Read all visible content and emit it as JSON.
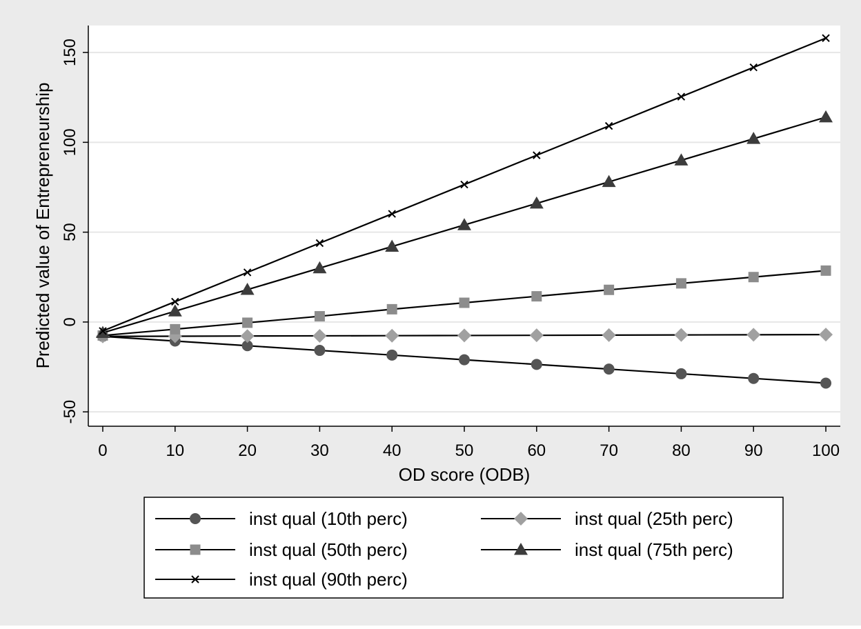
{
  "chart_data": {
    "type": "line",
    "title": "",
    "xlabel": "OD score (ODB)",
    "ylabel": "Predicted value of Entrepreneurship",
    "xlim": [
      -2,
      102
    ],
    "ylim": [
      -58,
      165
    ],
    "xticks": [
      0,
      10,
      20,
      30,
      40,
      50,
      60,
      70,
      80,
      90,
      100
    ],
    "yticks": [
      -50,
      0,
      50,
      100,
      150
    ],
    "grid": "horizontal",
    "legend_position": "bottom",
    "x": [
      0,
      10,
      20,
      30,
      40,
      50,
      60,
      70,
      80,
      90,
      100
    ],
    "series": [
      {
        "name": "inst qual (10th perc)",
        "marker": "circle",
        "marker_color": "#555555",
        "values": [
          -8,
          -10.6,
          -13.2,
          -15.8,
          -18.4,
          -21,
          -23.6,
          -26.2,
          -28.8,
          -31.4,
          -34
        ]
      },
      {
        "name": "inst qual (25th perc)",
        "marker": "diamond",
        "marker_color": "#a0a0a0",
        "values": [
          -8,
          -7.9,
          -7.8,
          -7.7,
          -7.6,
          -7.5,
          -7.4,
          -7.3,
          -7.2,
          -7.1,
          -7
        ]
      },
      {
        "name": "inst qual (50th perc)",
        "marker": "square",
        "marker_color": "#8c8c8c",
        "values": [
          -7.5,
          -4,
          -0.4,
          3.2,
          7.1,
          10.7,
          14.3,
          17.9,
          21.5,
          25,
          28.6
        ]
      },
      {
        "name": "inst qual (75th perc)",
        "marker": "triangle",
        "marker_color": "#3c3c3c",
        "values": [
          -6,
          6,
          18,
          30,
          42,
          54,
          66,
          78,
          90,
          102,
          114
        ]
      },
      {
        "name": "inst qual (90th perc)",
        "marker": "x",
        "marker_color": "#000000",
        "values": [
          -5,
          11.3,
          27.6,
          43.9,
          60.2,
          76.5,
          92.8,
          109.1,
          125.4,
          141.7,
          158
        ]
      }
    ],
    "colors": {
      "outer_background": "#ebebeb",
      "plot_background": "#ffffff",
      "gridline": "#e6e6e6",
      "line": "#000000"
    }
  }
}
